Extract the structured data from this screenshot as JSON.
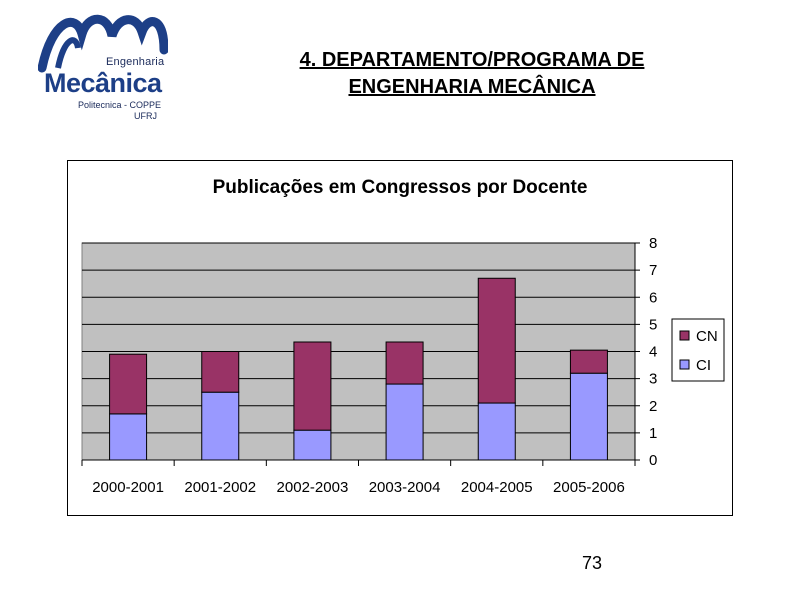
{
  "logo": {
    "top_text": "Engenharia",
    "main_text": "Mecânica",
    "sub_text": "Politecnica - COPPE",
    "sub_text2": "UFRJ"
  },
  "slide": {
    "title_line1": "4. DEPARTAMENTO/PROGRAMA DE ",
    "title_line2": "ENGENHARIA MECÂNICA",
    "page_number": "73"
  },
  "colors": {
    "cn": "#993366",
    "ci": "#9999ff",
    "plot_bg": "#c0c0c0",
    "logo_blue": "#1d3f87"
  },
  "chart_data": {
    "type": "bar",
    "stacked": true,
    "title": "Publicações em Congressos por Docente",
    "categories": [
      "2000-2001",
      "2001-2002",
      "2002-2003",
      "2003-2004",
      "2004-2005",
      "2005-2006"
    ],
    "series": [
      {
        "name": "CI",
        "values": [
          1.7,
          2.5,
          1.1,
          2.8,
          2.1,
          3.2
        ]
      },
      {
        "name": "CN",
        "values": [
          2.2,
          1.5,
          3.25,
          1.55,
          4.6,
          0.85
        ]
      }
    ],
    "ylim": [
      0,
      8
    ],
    "yticks": [
      "0",
      "1",
      "2",
      "3",
      "4",
      "5",
      "6",
      "7",
      "8"
    ],
    "y_axis_side": "right",
    "grid": true,
    "legend": "right",
    "legend_order": [
      "CN",
      "CI"
    ]
  }
}
